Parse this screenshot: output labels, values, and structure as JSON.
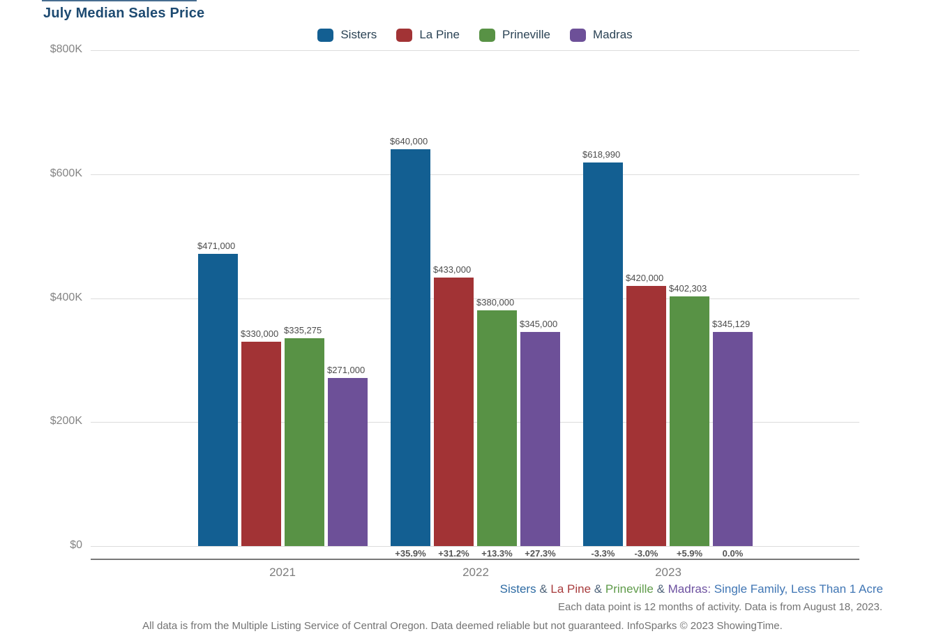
{
  "chart_data": {
    "type": "bar",
    "title": "July Median Sales Price",
    "categories": [
      "2021",
      "2022",
      "2023"
    ],
    "series": [
      {
        "name": "Sisters",
        "color": "#135f92",
        "values": [
          471000,
          640000,
          618990
        ],
        "value_labels": [
          "$471,000",
          "$640,000",
          "$618,990"
        ],
        "pct_change": [
          null,
          "+35.9%",
          "-3.3%"
        ]
      },
      {
        "name": "La Pine",
        "color": "#a23335",
        "values": [
          330000,
          433000,
          420000
        ],
        "value_labels": [
          "$330,000",
          "$433,000",
          "$420,000"
        ],
        "pct_change": [
          null,
          "+31.2%",
          "-3.0%"
        ]
      },
      {
        "name": "Prineville",
        "color": "#589245",
        "values": [
          335275,
          380000,
          402303
        ],
        "value_labels": [
          "$335,275",
          "$380,000",
          "$402,303"
        ],
        "pct_change": [
          null,
          "+13.3%",
          "+5.9%"
        ]
      },
      {
        "name": "Madras",
        "color": "#6d5098",
        "values": [
          271000,
          345000,
          345129
        ],
        "value_labels": [
          "$271,000",
          "$345,000",
          "$345,129"
        ],
        "pct_change": [
          null,
          "+27.3%",
          "0.0%"
        ]
      }
    ],
    "ylim": [
      0,
      800000
    ],
    "yticks": [
      {
        "label": "$800K",
        "value": 800000
      },
      {
        "label": "$600K",
        "value": 600000
      },
      {
        "label": "$400K",
        "value": 400000
      },
      {
        "label": "$200K",
        "value": 200000
      },
      {
        "label": "$0",
        "value": 0
      }
    ],
    "grid": true,
    "legend_position": "top",
    "xlabel": "",
    "ylabel": ""
  },
  "colors": {
    "title": "#1d4a71",
    "legend_text": "#2b4355",
    "grid": "#dcdcdc",
    "axis": "#787878",
    "ytick_label": "#848484",
    "year_label": "#7d7d7d",
    "value_label": "#4c4c4c",
    "pct_label": "#545454",
    "footnote_gray": "#737373"
  },
  "footnotes": {
    "series_line": {
      "segments": [
        {
          "text": "Sisters",
          "color": "#2e6ba3"
        },
        {
          "text": " & ",
          "color": "#50657b"
        },
        {
          "text": "La Pine",
          "color": "#a83c3d"
        },
        {
          "text": " & ",
          "color": "#50657b"
        },
        {
          "text": "Prineville",
          "color": "#5f9b4a"
        },
        {
          "text": " & ",
          "color": "#50657b"
        },
        {
          "text": "Madras",
          "color": "#6d51a0"
        },
        {
          "text": ": ",
          "color": "#6d51a0"
        },
        {
          "text": "Single Family, Less Than 1 Acre",
          "color": "#4076b4"
        }
      ]
    },
    "activity_note": "Each data point is 12 months of activity. Data is from August 18, 2023.",
    "disclaimer": "All data is from the Multiple Listing Service of Central Oregon. Data deemed reliable but not guaranteed. InfoSparks © 2023 ShowingTime."
  }
}
